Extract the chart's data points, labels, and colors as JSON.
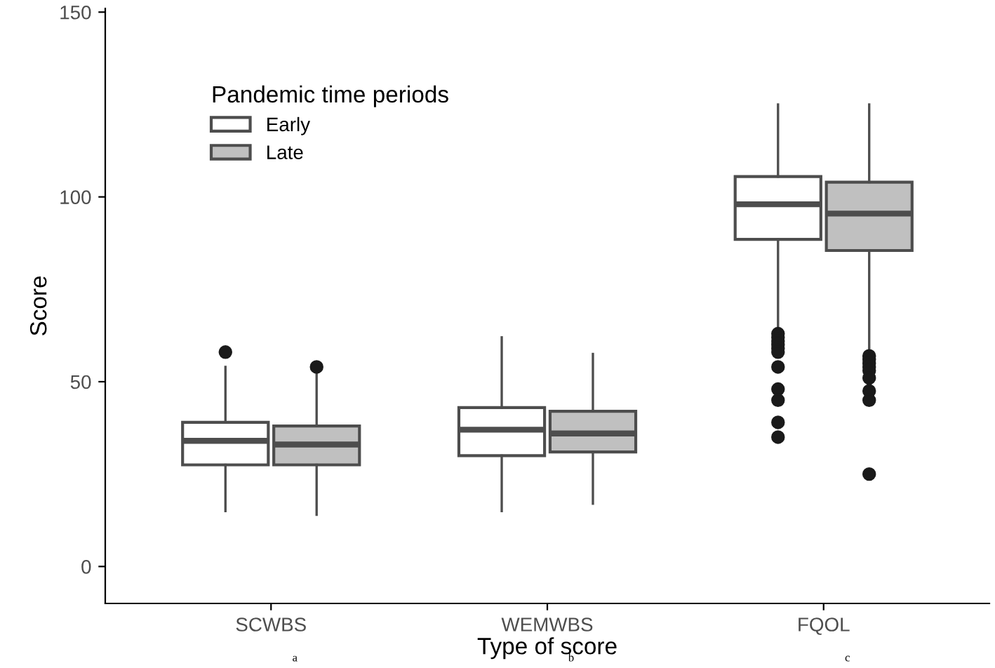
{
  "chart_data": {
    "type": "box",
    "xlabel": "Type of score",
    "ylabel": "Score",
    "legend_title": "Pandemic time periods",
    "legend": "top left",
    "grid": false,
    "categories": [
      "SCWBS",
      "WEMWBS",
      "FQOL"
    ],
    "ylim": [
      -10,
      151
    ],
    "yticks": [
      0,
      50,
      100,
      150
    ],
    "annotations": [
      "a",
      "b",
      "c"
    ],
    "series": [
      {
        "name": "Early",
        "color": "#ffffff",
        "boxes": [
          {
            "low": 15,
            "q1": 27.5,
            "median": 34,
            "q3": 39,
            "high": 54,
            "outliers": [
              58
            ]
          },
          {
            "low": 15,
            "q1": 30,
            "median": 37,
            "q3": 43,
            "high": 62
          },
          {
            "low": 64,
            "q1": 88.5,
            "median": 98,
            "q3": 105.5,
            "high": 125,
            "outliers": [
              63,
              62,
              61,
              60,
              59,
              58,
              54,
              48,
              45,
              39,
              35
            ]
          }
        ]
      },
      {
        "name": "Late",
        "color": "#c0c0c0",
        "boxes": [
          {
            "low": 14,
            "q1": 27.5,
            "median": 33,
            "q3": 38,
            "high": 52,
            "outliers": [
              54
            ]
          },
          {
            "low": 17,
            "q1": 31,
            "median": 36,
            "q3": 42,
            "high": 57.5
          },
          {
            "low": 58,
            "q1": 85.5,
            "median": 95.5,
            "q3": 104,
            "high": 125,
            "outliers": [
              57,
              56,
              55,
              54,
              53,
              51,
              47.5,
              45,
              25
            ]
          }
        ]
      }
    ]
  }
}
